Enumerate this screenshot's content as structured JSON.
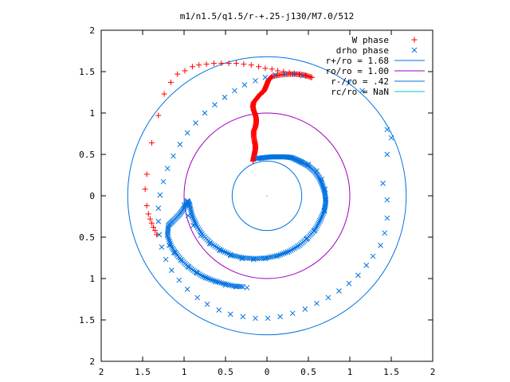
{
  "chart_data": {
    "type": "scatter",
    "title": "m1/n1.5/q1.5/r-+.25-j130/M7.0/512",
    "xlim": [
      -2,
      2
    ],
    "ylim": [
      -2,
      2
    ],
    "x_ticks": [
      -2,
      -1.5,
      -1,
      -0.5,
      0,
      0.5,
      1,
      1.5,
      2
    ],
    "y_ticks": [
      -2,
      -1.5,
      -1,
      -0.5,
      0,
      0.5,
      1,
      1.5,
      2
    ],
    "x_tick_labels": [
      "2",
      "1.5",
      "1",
      "0.5",
      "0",
      "0.5",
      "1",
      "1.5",
      "2"
    ],
    "y_tick_labels": [
      "2",
      "1.5",
      "1",
      "0.5",
      "0",
      "0.5",
      "1",
      "1.5",
      "2"
    ],
    "grid": false,
    "legend_position": "top-right",
    "legend": [
      {
        "label": "W phase",
        "color": "#ff0000",
        "marker": "plus"
      },
      {
        "label": "drho phase",
        "color": "#0072e0",
        "marker": "cross"
      },
      {
        "label": "r+/ro = 1.68",
        "color": "#0072e0",
        "marker": "line"
      },
      {
        "label": "ro/ro = 1.00",
        "color": "#a000c0",
        "marker": "line"
      },
      {
        "label": "r-/ro = .42",
        "color": "#0072e0",
        "marker": "line"
      },
      {
        "label": "rc/ro = NaN",
        "color": "#00c8c8",
        "marker": "line"
      }
    ],
    "circles": [
      {
        "name": "r+/ro = 1.68",
        "r": 1.68,
        "color": "#0072e0"
      },
      {
        "name": "ro/ro = 1.00",
        "r": 1.0,
        "color": "#a000c0"
      },
      {
        "name": "r-/ro = .42",
        "r": 0.42,
        "color": "#0072e0"
      }
    ],
    "series": [
      {
        "name": "W phase",
        "color": "#ff0000",
        "marker": "plus",
        "points": [
          [
            -1.33,
            -0.47
          ],
          [
            -1.35,
            -0.42
          ],
          [
            -1.37,
            -0.38
          ],
          [
            -1.39,
            -0.33
          ],
          [
            -1.41,
            -0.28
          ],
          [
            -1.43,
            -0.22
          ],
          [
            -1.45,
            -0.12
          ],
          [
            -1.47,
            0.08
          ],
          [
            -1.45,
            0.26
          ],
          [
            -1.39,
            0.64
          ],
          [
            -1.31,
            0.97
          ],
          [
            -1.24,
            1.23
          ],
          [
            -1.16,
            1.37
          ],
          [
            -1.08,
            1.47
          ],
          [
            -0.99,
            1.51
          ],
          [
            -0.9,
            1.56
          ],
          [
            -0.82,
            1.58
          ],
          [
            -0.73,
            1.59
          ],
          [
            -0.64,
            1.6
          ],
          [
            -0.55,
            1.6
          ],
          [
            -0.46,
            1.6
          ],
          [
            -0.37,
            1.6
          ],
          [
            -0.28,
            1.59
          ],
          [
            -0.19,
            1.58
          ],
          [
            -0.1,
            1.56
          ],
          [
            -0.02,
            1.54
          ],
          [
            0.06,
            1.53
          ],
          [
            0.13,
            1.51
          ],
          [
            0.2,
            1.5
          ],
          [
            0.27,
            1.49
          ],
          [
            0.33,
            1.48
          ],
          [
            0.39,
            1.47
          ],
          [
            0.43,
            1.46
          ],
          [
            0.47,
            1.45
          ],
          [
            0.51,
            1.44
          ],
          [
            0.54,
            1.43
          ]
        ],
        "trail": [
          [
            0.54,
            1.43
          ],
          [
            0.45,
            1.46
          ],
          [
            0.35,
            1.47
          ],
          [
            0.25,
            1.47
          ],
          [
            0.15,
            1.46
          ],
          [
            0.06,
            1.44
          ],
          [
            0.02,
            1.4
          ],
          [
            0.0,
            1.35
          ],
          [
            -0.02,
            1.3
          ],
          [
            -0.04,
            1.26
          ],
          [
            -0.08,
            1.23
          ],
          [
            -0.12,
            1.18
          ],
          [
            -0.16,
            1.13
          ],
          [
            -0.17,
            1.08
          ],
          [
            -0.16,
            1.03
          ],
          [
            -0.14,
            0.98
          ],
          [
            -0.13,
            0.93
          ],
          [
            -0.13,
            0.88
          ],
          [
            -0.14,
            0.83
          ],
          [
            -0.16,
            0.78
          ],
          [
            -0.16,
            0.72
          ],
          [
            -0.15,
            0.66
          ],
          [
            -0.14,
            0.61
          ],
          [
            -0.14,
            0.56
          ],
          [
            -0.15,
            0.51
          ],
          [
            -0.16,
            0.46
          ],
          [
            -0.17,
            0.41
          ]
        ]
      },
      {
        "name": "drho phase",
        "color": "#0072e0",
        "marker": "cross",
        "points": [
          [
            0.99,
            1.36
          ],
          [
            1.15,
            1.27
          ],
          [
            1.45,
            0.8
          ],
          [
            1.5,
            0.7
          ],
          [
            1.45,
            0.5
          ],
          [
            1.4,
            0.15
          ],
          [
            1.45,
            -0.05
          ],
          [
            1.45,
            -0.27
          ],
          [
            1.42,
            -0.45
          ],
          [
            1.37,
            -0.6
          ],
          [
            1.28,
            -0.73
          ],
          [
            1.2,
            -0.84
          ],
          [
            1.1,
            -0.96
          ],
          [
            0.99,
            -1.06
          ],
          [
            0.87,
            -1.15
          ],
          [
            0.74,
            -1.23
          ],
          [
            0.6,
            -1.3
          ],
          [
            0.46,
            -1.37
          ],
          [
            0.31,
            -1.42
          ],
          [
            0.16,
            -1.46
          ],
          [
            0.01,
            -1.48
          ],
          [
            -0.14,
            -1.48
          ],
          [
            -0.29,
            -1.46
          ],
          [
            -0.44,
            -1.43
          ],
          [
            -0.58,
            -1.38
          ],
          [
            -0.72,
            -1.31
          ],
          [
            -0.84,
            -1.23
          ],
          [
            -0.96,
            -1.13
          ],
          [
            -1.06,
            -1.02
          ],
          [
            -1.15,
            -0.9
          ],
          [
            -1.22,
            -0.77
          ],
          [
            -1.27,
            -0.62
          ],
          [
            -1.3,
            -0.47
          ],
          [
            -1.31,
            -0.31
          ],
          [
            -1.31,
            -0.15
          ],
          [
            -1.29,
            0.01
          ],
          [
            -1.25,
            0.17
          ],
          [
            -1.2,
            0.33
          ],
          [
            -1.13,
            0.48
          ],
          [
            -1.05,
            0.62
          ],
          [
            -0.96,
            0.76
          ],
          [
            -0.86,
            0.88
          ],
          [
            -0.75,
            1.0
          ],
          [
            -0.63,
            1.1
          ],
          [
            -0.51,
            1.19
          ],
          [
            -0.39,
            1.27
          ],
          [
            -0.27,
            1.34
          ],
          [
            -0.14,
            1.39
          ],
          [
            -0.02,
            1.43
          ],
          [
            0.1,
            1.46
          ],
          [
            0.22,
            1.47
          ],
          [
            0.33,
            1.47
          ],
          [
            0.43,
            1.45
          ],
          [
            0.5,
            0.38
          ],
          [
            0.6,
            0.3
          ],
          [
            0.66,
            0.2
          ],
          [
            0.7,
            0.08
          ],
          [
            0.71,
            -0.05
          ],
          [
            0.69,
            -0.18
          ],
          [
            0.64,
            -0.3
          ],
          [
            0.57,
            -0.42
          ],
          [
            0.48,
            -0.52
          ],
          [
            0.37,
            -0.61
          ],
          [
            0.25,
            -0.68
          ],
          [
            0.12,
            -0.73
          ],
          [
            -0.02,
            -0.76
          ],
          [
            -0.16,
            -0.77
          ],
          [
            -0.3,
            -0.76
          ],
          [
            -0.44,
            -0.72
          ],
          [
            -0.57,
            -0.66
          ],
          [
            -0.69,
            -0.58
          ],
          [
            -0.8,
            -0.48
          ],
          [
            -0.89,
            -0.36
          ],
          [
            -0.95,
            -0.24
          ],
          [
            -1.0,
            -0.11
          ],
          [
            -1.18,
            -0.6
          ],
          [
            -1.12,
            -0.69
          ],
          [
            -1.04,
            -0.78
          ],
          [
            -0.95,
            -0.86
          ],
          [
            -0.85,
            -0.93
          ],
          [
            -0.74,
            -0.99
          ],
          [
            -0.62,
            -1.04
          ],
          [
            -0.5,
            -1.08
          ],
          [
            -0.37,
            -1.1
          ],
          [
            -0.24,
            -1.11
          ]
        ],
        "trail": [
          [
            -0.12,
            0.45
          ],
          [
            -0.04,
            0.46
          ],
          [
            0.05,
            0.47
          ],
          [
            0.14,
            0.47
          ],
          [
            0.23,
            0.47
          ],
          [
            0.3,
            0.46
          ],
          [
            0.37,
            0.43
          ],
          [
            0.43,
            0.4
          ],
          [
            0.5,
            0.36
          ],
          [
            0.57,
            0.3
          ],
          [
            0.63,
            0.22
          ],
          [
            0.67,
            0.13
          ],
          [
            0.7,
            0.03
          ],
          [
            0.71,
            -0.08
          ],
          [
            0.69,
            -0.19
          ],
          [
            0.64,
            -0.3
          ],
          [
            0.58,
            -0.41
          ],
          [
            0.49,
            -0.51
          ],
          [
            0.39,
            -0.6
          ],
          [
            0.27,
            -0.67
          ],
          [
            0.14,
            -0.72
          ],
          [
            0.0,
            -0.75
          ],
          [
            -0.14,
            -0.76
          ],
          [
            -0.28,
            -0.75
          ],
          [
            -0.42,
            -0.72
          ],
          [
            -0.55,
            -0.66
          ],
          [
            -0.67,
            -0.58
          ],
          [
            -0.77,
            -0.48
          ],
          [
            -0.85,
            -0.36
          ],
          [
            -0.9,
            -0.25
          ],
          [
            -0.93,
            -0.12
          ],
          [
            -0.96,
            -0.06
          ],
          [
            -1.0,
            -0.15
          ],
          [
            -1.06,
            -0.23
          ],
          [
            -1.13,
            -0.3
          ],
          [
            -1.19,
            -0.36
          ],
          [
            -1.2,
            -0.48
          ],
          [
            -1.15,
            -0.62
          ],
          [
            -1.08,
            -0.72
          ],
          [
            -0.99,
            -0.82
          ],
          [
            -0.89,
            -0.9
          ],
          [
            -0.78,
            -0.97
          ],
          [
            -0.66,
            -1.02
          ],
          [
            -0.53,
            -1.06
          ],
          [
            -0.4,
            -1.09
          ],
          [
            -0.27,
            -1.1
          ]
        ]
      }
    ]
  }
}
